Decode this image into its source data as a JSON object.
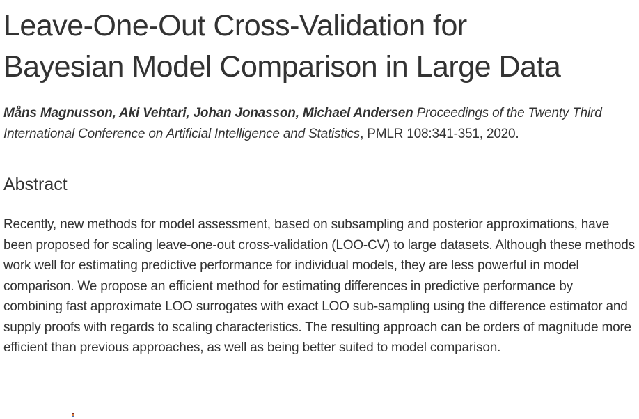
{
  "paper": {
    "title": "Leave-One-Out Cross-Validation for Bayesian Model Comparison in Large Data",
    "authors": "Måns Magnusson, Aki Vehtari, Johan Jonasson, Michael Andersen",
    "proceedings": "Proceedings of the Twenty Third International Conference on Artificial Intelligence and Statistics",
    "citation": ", PMLR 108:341-351, 2020.",
    "abstract_heading": "Abstract",
    "abstract_text": "Recently, new methods for model assessment, based on subsampling and posterior approximations, have been proposed for scaling leave-one-out cross-validation (LOO-CV) to large datasets. Although these methods work well for estimating predictive performance for individual models, they are less powerful in model comparison. We propose an efficient method for estimating differences in predictive performance by combining fast approximate LOO surrogates with exact LOO sub-sampling using the difference estimator and supply proofs with regards to scaling characteristics. The resulting approach can be orders of magnitude more efficient than previous approaches, as well as being better suited to model comparison."
  },
  "colors": {
    "text": "#333333",
    "background": "#ffffff"
  }
}
